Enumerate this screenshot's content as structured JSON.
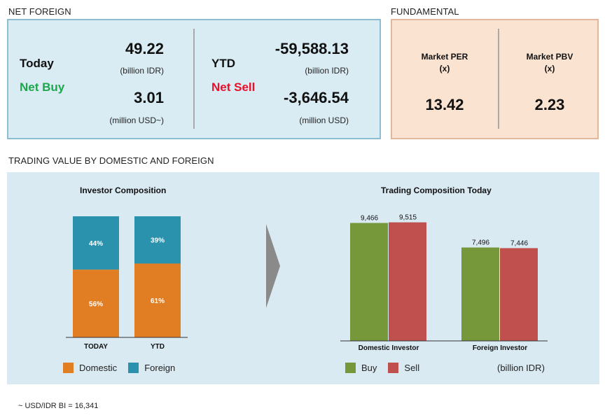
{
  "net_foreign": {
    "section_label": "NET FOREIGN",
    "today": {
      "period": "Today",
      "status": "Net Buy",
      "status_color": "#1aa84a",
      "idr_value": "49.22",
      "idr_unit": "(billion IDR)",
      "usd_value": "3.01",
      "usd_unit": "(million USD~)"
    },
    "ytd": {
      "period": "YTD",
      "status": "Net Sell",
      "status_color": "#e8102a",
      "idr_value": "-59,588.13",
      "idr_unit": "(billion IDR)",
      "usd_value": "-3,646.54",
      "usd_unit": "(million USD)"
    }
  },
  "fundamental": {
    "section_label": "FUNDAMENTAL",
    "per": {
      "label_line1": "Market PER",
      "label_line2": "(x)",
      "value": "13.42"
    },
    "pbv": {
      "label_line1": "Market PBV",
      "label_line2": "(x)",
      "value": "2.23"
    }
  },
  "trading": {
    "section_label": "TRADING VALUE BY DOMESTIC AND FOREIGN",
    "footnote": "~ USD/IDR BI = 16,341",
    "arrow_icon": "chevron-right-icon"
  },
  "chart_data": [
    {
      "type": "bar",
      "stacked": true,
      "percent": true,
      "title": "Investor Composition",
      "categories": [
        "TODAY",
        "YTD"
      ],
      "series": [
        {
          "name": "Domestic",
          "values": [
            56,
            61
          ],
          "labels": [
            "56%",
            "61%"
          ],
          "color": "#e17e24"
        },
        {
          "name": "Foreign",
          "values": [
            44,
            39
          ],
          "labels": [
            "44%",
            "39%"
          ],
          "color": "#2a92ad"
        }
      ],
      "ylim": [
        0,
        100
      ],
      "grid": false,
      "legend": "bottom"
    },
    {
      "type": "bar",
      "title": "Trading Composition Today",
      "categories": [
        "Domestic Investor",
        "Foreign Investor"
      ],
      "series": [
        {
          "name": "Buy",
          "values": [
            9466,
            7496
          ],
          "labels": [
            "9,466",
            "7,496"
          ],
          "color": "#77973b"
        },
        {
          "name": "Sell",
          "values": [
            9515,
            7446
          ],
          "labels": [
            "9,515",
            "7,446"
          ],
          "color": "#c0504d"
        }
      ],
      "unit_note": "(billion IDR)",
      "ylim": [
        0,
        10000
      ],
      "grid": false,
      "legend": "bottom"
    }
  ]
}
